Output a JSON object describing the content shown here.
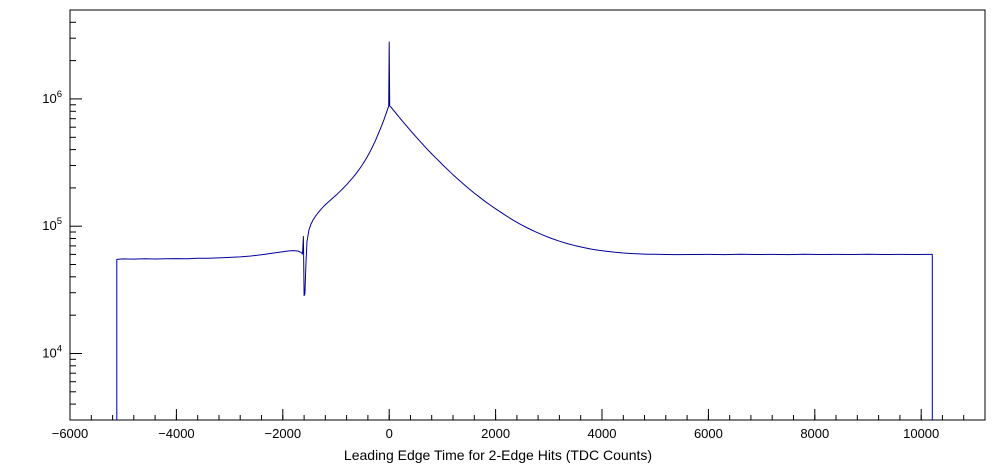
{
  "chart_data": {
    "type": "line",
    "title": "",
    "xlabel": "Leading Edge Time for 2-Edge Hits (TDC Counts)",
    "ylabel": "",
    "yscale": "log",
    "grid": false,
    "legend": "none",
    "xlim": [
      -6000,
      11200
    ],
    "ylim": [
      3000,
      5000000
    ],
    "x_ticks": [
      -6000,
      -4000,
      -2000,
      0,
      2000,
      4000,
      6000,
      8000,
      10000
    ],
    "x_tick_labels": [
      "−6000",
      "−4000",
      "−2000",
      "0",
      "2000",
      "4000",
      "6000",
      "8000",
      "10000"
    ],
    "x_minor_step": 400,
    "y_tick_labels": [
      "10^4",
      "10^5",
      "10^6"
    ],
    "line_color": "#000099",
    "frame_color": "#000000",
    "background_color": "#ffffff",
    "points": [
      [
        -5120,
        3000
      ],
      [
        -5120,
        54800
      ],
      [
        -5000,
        55300
      ],
      [
        -4800,
        55100
      ],
      [
        -4600,
        55400
      ],
      [
        -4400,
        55200
      ],
      [
        -4200,
        55400
      ],
      [
        -4000,
        55600
      ],
      [
        -3800,
        55500
      ],
      [
        -3600,
        55900
      ],
      [
        -3400,
        56100
      ],
      [
        -3200,
        56400
      ],
      [
        -3000,
        56900
      ],
      [
        -2800,
        57400
      ],
      [
        -2600,
        58300
      ],
      [
        -2400,
        59600
      ],
      [
        -2200,
        61300
      ],
      [
        -2050,
        62600
      ],
      [
        -1900,
        63900
      ],
      [
        -1800,
        64300
      ],
      [
        -1720,
        63800
      ],
      [
        -1660,
        62400
      ],
      [
        -1630,
        60500
      ],
      [
        -1612,
        83000
      ],
      [
        -1600,
        28500
      ],
      [
        -1585,
        29500
      ],
      [
        -1565,
        50000
      ],
      [
        -1545,
        76000
      ],
      [
        -1510,
        93000
      ],
      [
        -1470,
        104000
      ],
      [
        -1430,
        112000
      ],
      [
        -1390,
        119000
      ],
      [
        -1340,
        127000
      ],
      [
        -1280,
        136000
      ],
      [
        -1220,
        145000
      ],
      [
        -1160,
        153000
      ],
      [
        -1100,
        161000
      ],
      [
        -1040,
        169500
      ],
      [
        -980,
        178500
      ],
      [
        -920,
        188500
      ],
      [
        -860,
        199500
      ],
      [
        -800,
        212000
      ],
      [
        -740,
        226000
      ],
      [
        -680,
        242000
      ],
      [
        -620,
        260000
      ],
      [
        -560,
        281000
      ],
      [
        -500,
        306000
      ],
      [
        -440,
        336000
      ],
      [
        -380,
        372000
      ],
      [
        -320,
        416000
      ],
      [
        -260,
        470000
      ],
      [
        -200,
        537000
      ],
      [
        -150,
        604000
      ],
      [
        -100,
        686000
      ],
      [
        -60,
        764000
      ],
      [
        -30,
        830000
      ],
      [
        -10,
        880000
      ],
      [
        0,
        2800000
      ],
      [
        10,
        880000
      ],
      [
        40,
        856000
      ],
      [
        80,
        818000
      ],
      [
        140,
        762000
      ],
      [
        200,
        709000
      ],
      [
        260,
        661000
      ],
      [
        320,
        617000
      ],
      [
        380,
        577000
      ],
      [
        440,
        540000
      ],
      [
        500,
        506000
      ],
      [
        560,
        474000
      ],
      [
        620,
        445000
      ],
      [
        680,
        418000
      ],
      [
        740,
        393000
      ],
      [
        800,
        370000
      ],
      [
        880,
        342000
      ],
      [
        960,
        317000
      ],
      [
        1040,
        294000
      ],
      [
        1120,
        273000
      ],
      [
        1200,
        254000
      ],
      [
        1300,
        233000
      ],
      [
        1400,
        214000
      ],
      [
        1500,
        197000
      ],
      [
        1600,
        182000
      ],
      [
        1700,
        169000
      ],
      [
        1800,
        157000
      ],
      [
        1900,
        146500
      ],
      [
        2000,
        137000
      ],
      [
        2150,
        124500
      ],
      [
        2300,
        113500
      ],
      [
        2450,
        104500
      ],
      [
        2600,
        96800
      ],
      [
        2750,
        90300
      ],
      [
        2900,
        84800
      ],
      [
        3050,
        80200
      ],
      [
        3200,
        76300
      ],
      [
        3350,
        73000
      ],
      [
        3500,
        70300
      ],
      [
        3650,
        68000
      ],
      [
        3800,
        66100
      ],
      [
        3950,
        64600
      ],
      [
        4100,
        63400
      ],
      [
        4250,
        62400
      ],
      [
        4400,
        61600
      ],
      [
        4550,
        61000
      ],
      [
        4700,
        60600
      ],
      [
        4850,
        60300
      ],
      [
        5000,
        60100
      ],
      [
        5200,
        59900
      ],
      [
        5400,
        59800
      ],
      [
        5700,
        59900
      ],
      [
        6000,
        60000
      ],
      [
        6300,
        59800
      ],
      [
        6600,
        60100
      ],
      [
        6900,
        59900
      ],
      [
        7200,
        60000
      ],
      [
        7500,
        59800
      ],
      [
        7800,
        60100
      ],
      [
        8100,
        59900
      ],
      [
        8400,
        60000
      ],
      [
        8700,
        59900
      ],
      [
        9000,
        60100
      ],
      [
        9300,
        59900
      ],
      [
        9600,
        60000
      ],
      [
        9900,
        59900
      ],
      [
        10150,
        60000
      ],
      [
        10210,
        60000
      ],
      [
        10210,
        3000
      ]
    ]
  }
}
